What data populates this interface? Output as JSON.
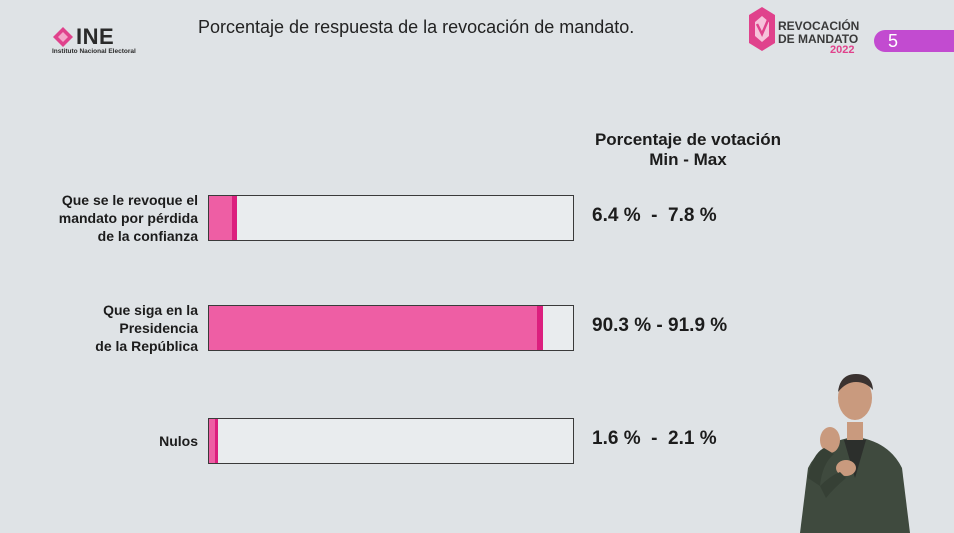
{
  "header": {
    "ine_word": "INE",
    "ine_sub": "Instituto Nacional Electoral",
    "title": "Porcentaje de respuesta de la revocación de mandato.",
    "rev_line1": "REVOCACIÓN",
    "rev_line2": "DE MANDATO",
    "rev_year": "2022",
    "page_number": "5"
  },
  "chart_data": {
    "type": "bar",
    "orientation": "horizontal",
    "header_line1": "Porcentaje de votación",
    "header_line2": "Min - Max",
    "xlim": [
      0,
      100
    ],
    "colors": {
      "min": "#ee5ea4",
      "range": "#dc1f7e",
      "track": "#e9ecee"
    },
    "categories": [
      {
        "label_lines": [
          "Que se le revoque el",
          "mandato por pérdida",
          "de la confianza"
        ],
        "min": 6.4,
        "max": 7.8,
        "range_text": "6.4 %  -  7.8 %"
      },
      {
        "label_lines": [
          "Que siga en la",
          "Presidencia",
          "de la República"
        ],
        "min": 90.3,
        "max": 91.9,
        "range_text": "90.3 % - 91.9 %"
      },
      {
        "label_lines": [
          "Nulos"
        ],
        "min": 1.6,
        "max": 2.1,
        "range_text": "1.6 %  -  2.1 %"
      }
    ]
  }
}
